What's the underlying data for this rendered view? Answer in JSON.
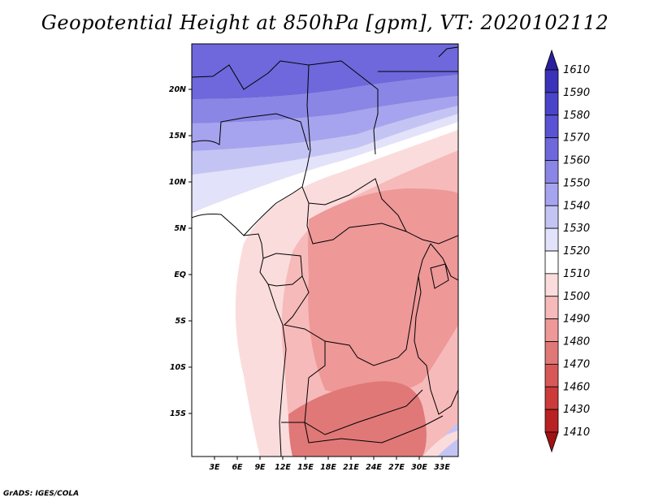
{
  "title": "Geopotential Height at 850hPa [gpm], VT: 2020102112",
  "credit": "GrADS: IGES/COLA",
  "map": {
    "lat_ticks": [
      "20N",
      "15N",
      "10N",
      "5N",
      "EQ",
      "5S",
      "10S",
      "15S"
    ],
    "lon_ticks": [
      "3E",
      "6E",
      "9E",
      "12E",
      "15E",
      "18E",
      "21E",
      "24E",
      "27E",
      "30E",
      "33E"
    ]
  },
  "colorbar": {
    "labels": [
      "1610",
      "1590",
      "1580",
      "1570",
      "1560",
      "1550",
      "1540",
      "1530",
      "1520",
      "1510",
      "1500",
      "1490",
      "1480",
      "1470",
      "1460",
      "1430",
      "1410"
    ],
    "colors": [
      "#2a1f9e",
      "#3a32b8",
      "#4a44c8",
      "#5a54d4",
      "#6e68dc",
      "#8a86e6",
      "#a6a4ee",
      "#c4c4f4",
      "#e2e2fa",
      "#ffffff",
      "#fbdcdc",
      "#f6baba",
      "#ee9898",
      "#e07878",
      "#d85858",
      "#cc3a3a",
      "#b82222",
      "#a01212"
    ]
  }
}
